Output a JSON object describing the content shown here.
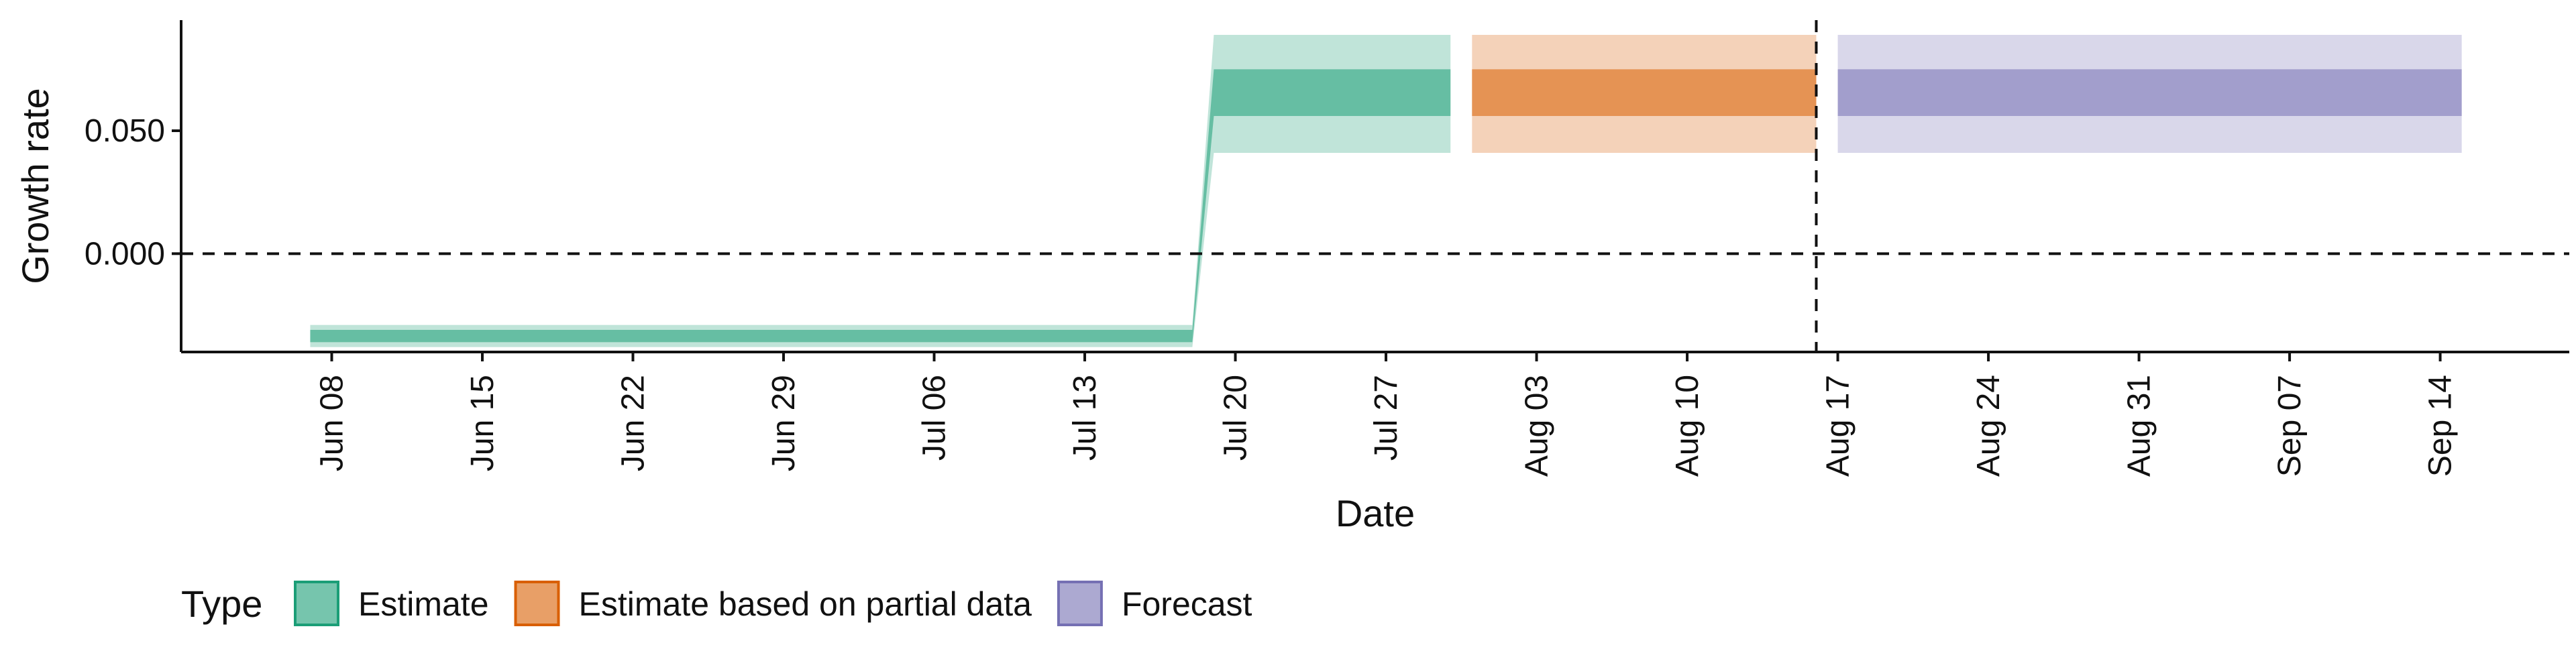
{
  "chart_data": {
    "type": "area",
    "title": "",
    "xlabel": "Date",
    "ylabel": "Growth rate",
    "x_range": [
      "2020-06-01",
      "2020-09-20"
    ],
    "ylim": [
      -0.04,
      0.095
    ],
    "y_ticks": [
      0.0,
      0.05
    ],
    "y_tick_labels": [
      "0.000",
      "0.050"
    ],
    "x_ticks": [
      "2020-06-08",
      "2020-06-15",
      "2020-06-22",
      "2020-06-29",
      "2020-07-06",
      "2020-07-13",
      "2020-07-20",
      "2020-07-27",
      "2020-08-03",
      "2020-08-10",
      "2020-08-17",
      "2020-08-24",
      "2020-08-31",
      "2020-09-07",
      "2020-09-14"
    ],
    "x_tick_labels": [
      "Jun 08",
      "Jun 15",
      "Jun 22",
      "Jun 29",
      "Jul 06",
      "Jul 13",
      "Jul 20",
      "Jul 27",
      "Aug 03",
      "Aug 10",
      "Aug 17",
      "Aug 24",
      "Aug 31",
      "Sep 07",
      "Sep 14"
    ],
    "hline": 0.0,
    "vline": "2020-08-16",
    "grid": false,
    "legend": {
      "title": "Type",
      "position": "bottom-left"
    },
    "series": [
      {
        "name": "Estimate",
        "color": "#1b9e77",
        "segments": [
          {
            "x_start": "2020-06-07",
            "x_end": "2020-07-18",
            "inner": [
              -0.036,
              -0.031
            ],
            "outer": [
              -0.038,
              -0.029
            ]
          },
          {
            "x_start": "2020-07-19",
            "x_end": "2020-07-30",
            "inner": [
              0.056,
              0.075
            ],
            "outer": [
              0.041,
              0.089
            ]
          }
        ]
      },
      {
        "name": "Estimate based on partial data",
        "color": "#d95f02",
        "segments": [
          {
            "x_start": "2020-07-31",
            "x_end": "2020-08-16",
            "inner": [
              0.056,
              0.075
            ],
            "outer": [
              0.041,
              0.089
            ]
          }
        ]
      },
      {
        "name": "Forecast",
        "color": "#7570b3",
        "segments": [
          {
            "x_start": "2020-08-17",
            "x_end": "2020-09-15",
            "inner": [
              0.056,
              0.075
            ],
            "outer": [
              0.041,
              0.089
            ]
          }
        ]
      }
    ]
  }
}
